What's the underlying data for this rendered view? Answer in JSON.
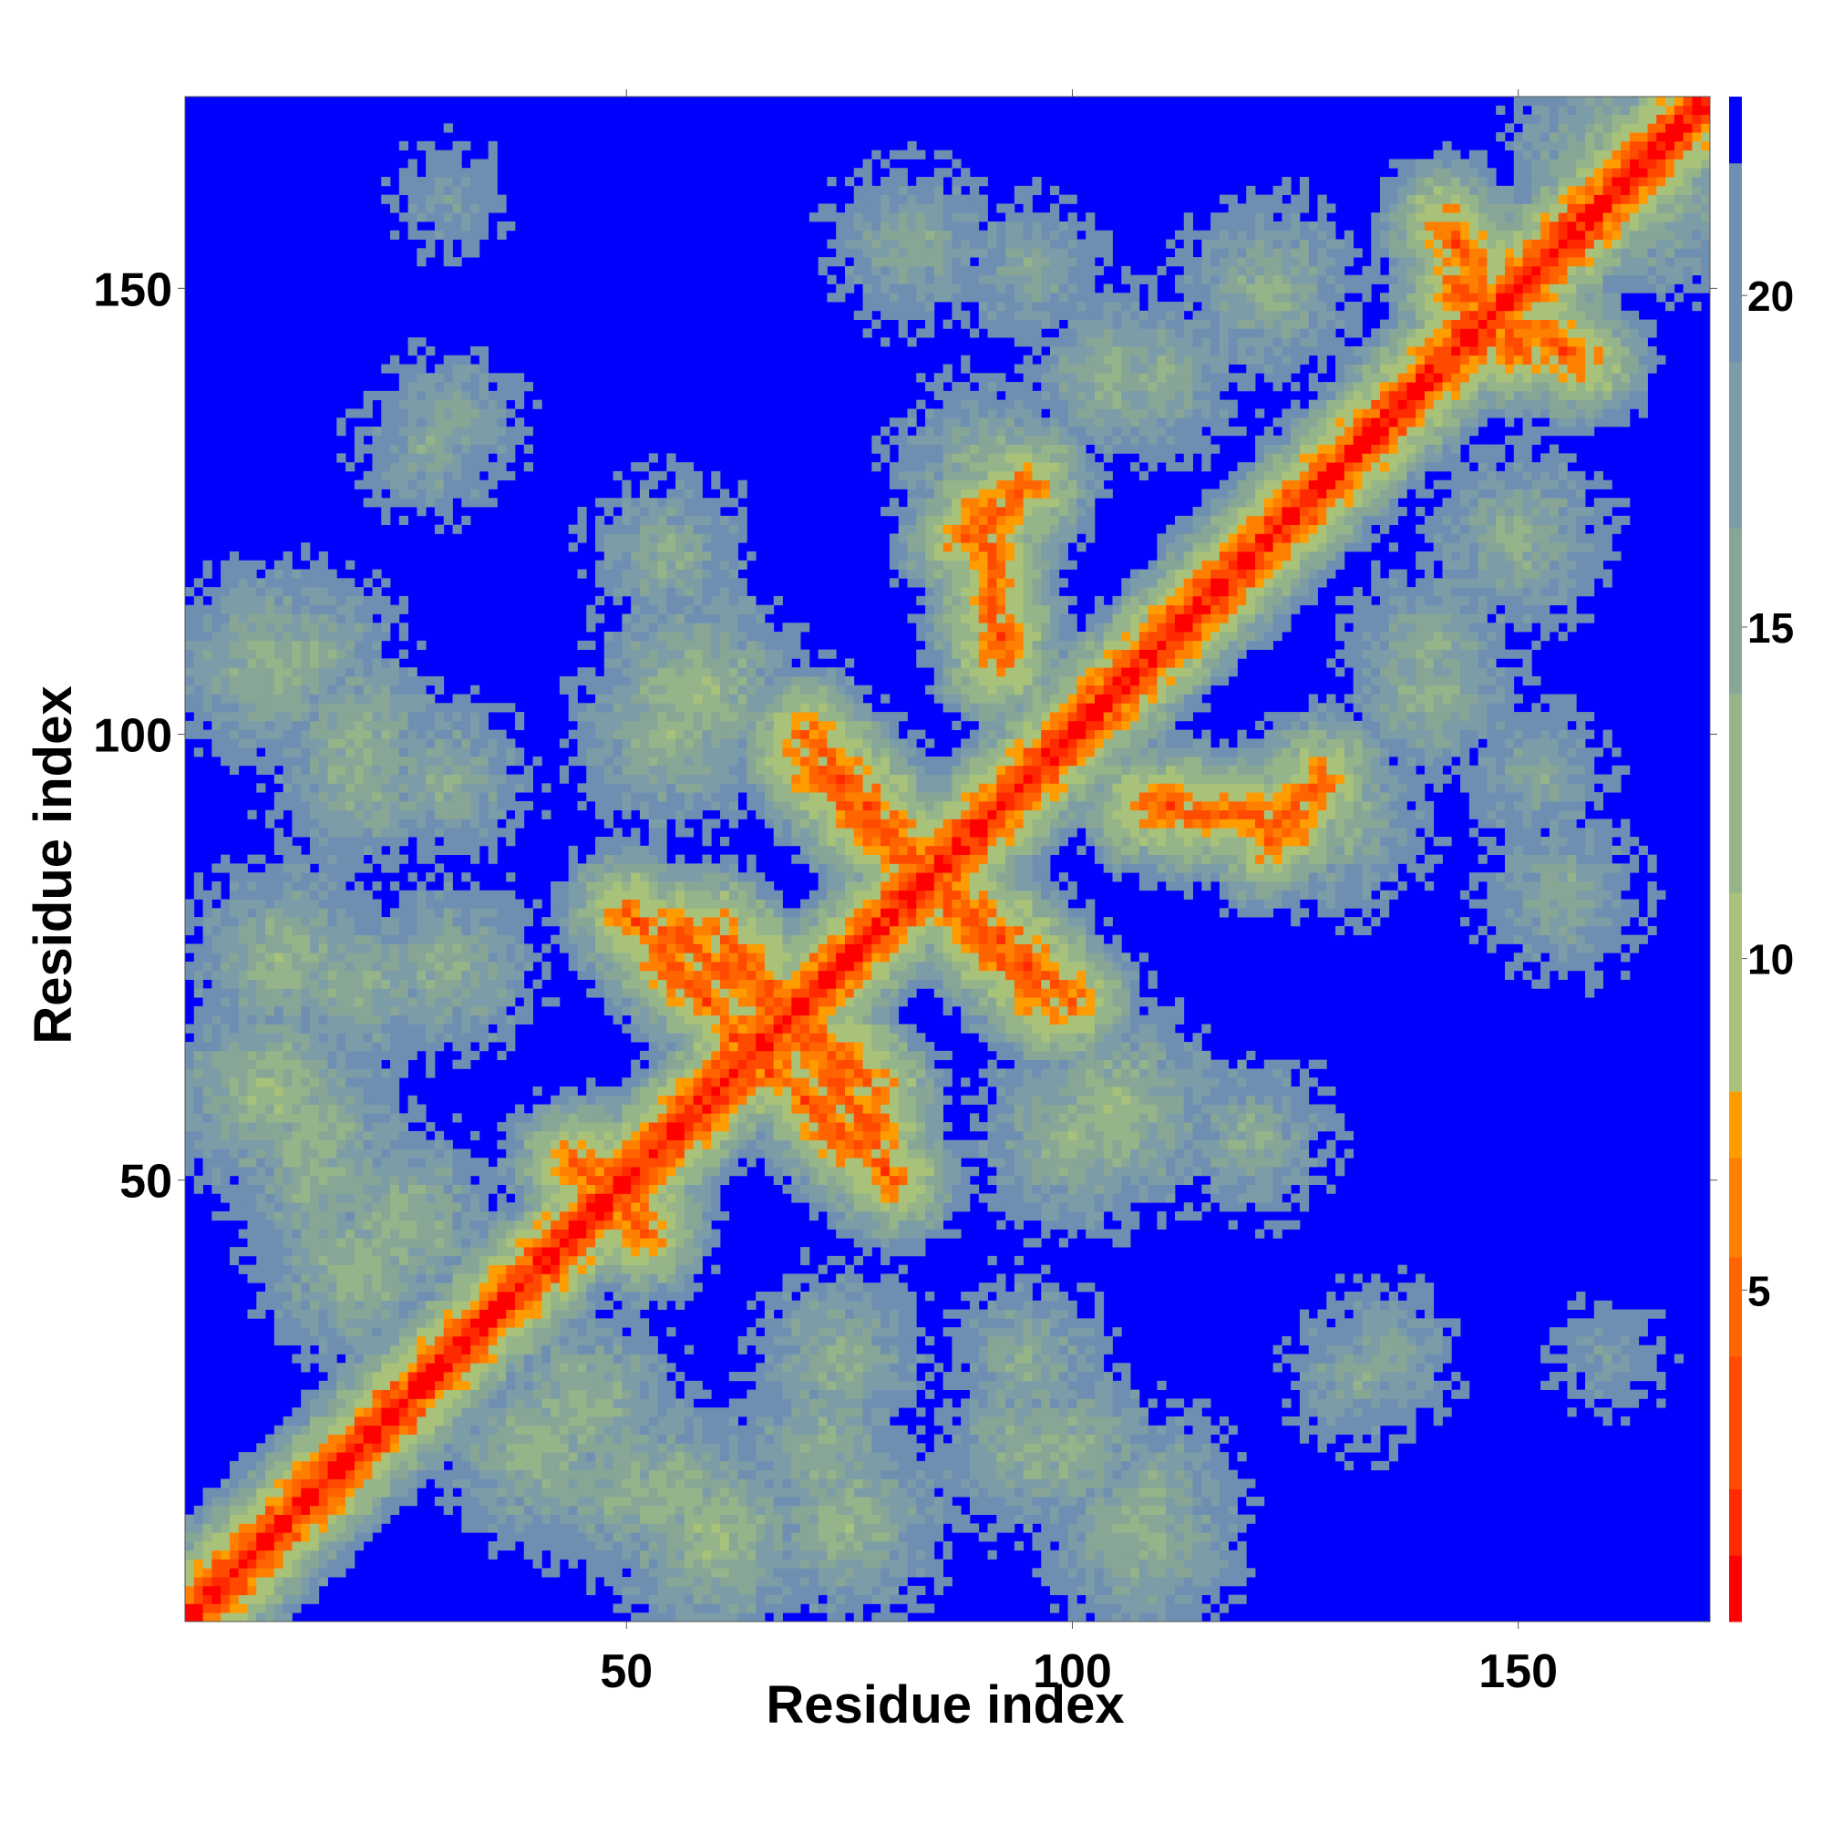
{
  "chart_data": {
    "type": "heatmap",
    "title": "",
    "xlabel": "Residue index",
    "ylabel": "Residue index",
    "xlim": [
      1,
      171
    ],
    "ylim": [
      1,
      171
    ],
    "x_ticks": [
      50,
      100,
      150
    ],
    "y_ticks": [
      50,
      100,
      150
    ],
    "colorbar": {
      "ticks": [
        5,
        10,
        15,
        20
      ],
      "range": [
        0,
        23
      ],
      "levels": [
        {
          "from": 0,
          "to": 1,
          "color": "#ff0000"
        },
        {
          "from": 1,
          "to": 2,
          "color": "#ff2a00"
        },
        {
          "from": 2,
          "to": 4,
          "color": "#ff4a00"
        },
        {
          "from": 4,
          "to": 5.5,
          "color": "#ff6400"
        },
        {
          "from": 5.5,
          "to": 7,
          "color": "#ff8000"
        },
        {
          "from": 7,
          "to": 8,
          "color": "#ff9c00"
        },
        {
          "from": 8,
          "to": 11,
          "color": "#a8c27a"
        },
        {
          "from": 11,
          "to": 14,
          "color": "#96b48a"
        },
        {
          "from": 14,
          "to": 16.5,
          "color": "#88a696"
        },
        {
          "from": 16.5,
          "to": 19,
          "color": "#7c9ca8"
        },
        {
          "from": 19,
          "to": 22,
          "color": "#6f8fb2"
        },
        {
          "from": 22,
          "to": 23,
          "color": "#0000ff"
        }
      ]
    },
    "value_description": "inter-residue distance (Å); pixels >= 22 render as background blue",
    "diagonal": {
      "from": 1,
      "to": 171,
      "value": 0
    },
    "contact_bands": [
      {
        "start": [
          55,
          78
        ],
        "end": [
          78,
          60
        ]
      },
      {
        "start": [
          62,
          66
        ],
        "end": [
          80,
          50
        ]
      },
      {
        "start": [
          70,
          97
        ],
        "end": [
          92,
          75
        ]
      },
      {
        "start": [
          82,
          86
        ],
        "end": [
          100,
          70
        ]
      },
      {
        "start": [
          108,
          92
        ],
        "end": [
          125,
          90
        ]
      },
      {
        "start": [
          88,
          122
        ],
        "end": [
          95,
          128
        ]
      },
      {
        "start": [
          142,
          157
        ],
        "end": [
          150,
          143
        ]
      },
      {
        "start": [
          44,
          52
        ],
        "end": [
          52,
          45
        ]
      }
    ],
    "contact_blobs": [
      {
        "center": [
          10,
          108
        ],
        "value": 12
      },
      {
        "center": [
          20,
          100
        ],
        "value": 13
      },
      {
        "center": [
          30,
          95
        ],
        "value": 14
      },
      {
        "center": [
          28,
          132
        ],
        "value": 15
      },
      {
        "center": [
          58,
          105
        ],
        "value": 11
      },
      {
        "center": [
          12,
          75
        ],
        "value": 12
      },
      {
        "center": [
          30,
          74
        ],
        "value": 13
      },
      {
        "center": [
          10,
          60
        ],
        "value": 11
      },
      {
        "center": [
          20,
          40
        ],
        "value": 12
      },
      {
        "center": [
          15,
          50
        ],
        "value": 13
      },
      {
        "center": [
          45,
          25
        ],
        "value": 12
      },
      {
        "center": [
          55,
          15
        ],
        "value": 12
      },
      {
        "center": [
          72,
          20
        ],
        "value": 13
      },
      {
        "center": [
          95,
          20
        ],
        "value": 13
      },
      {
        "center": [
          110,
          15
        ],
        "value": 14
      },
      {
        "center": [
          100,
          55
        ],
        "value": 12
      },
      {
        "center": [
          120,
          55
        ],
        "value": 14
      },
      {
        "center": [
          135,
          30
        ],
        "value": 15
      },
      {
        "center": [
          160,
          30
        ],
        "value": 17
      },
      {
        "center": [
          105,
          140
        ],
        "value": 13
      },
      {
        "center": [
          82,
          155
        ],
        "value": 14
      },
      {
        "center": [
          122,
          150
        ],
        "value": 13
      },
      {
        "center": [
          140,
          110
        ],
        "value": 14
      },
      {
        "center": [
          130,
          90
        ],
        "value": 13
      },
      {
        "center": [
          152,
          95
        ],
        "value": 15
      },
      {
        "center": [
          160,
          165
        ],
        "value": 12
      }
    ]
  }
}
